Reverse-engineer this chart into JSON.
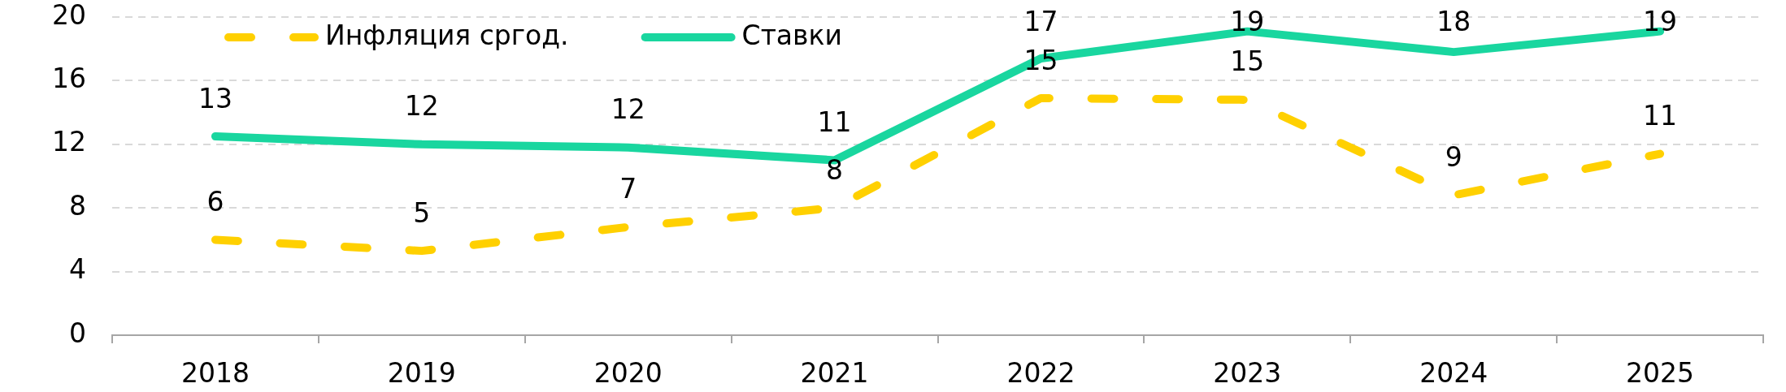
{
  "chart_data": {
    "type": "line",
    "categories": [
      "2018",
      "2019",
      "2020",
      "2021",
      "2022",
      "2023",
      "2024",
      "2025"
    ],
    "series": [
      {
        "name": "Инфляция сргод.",
        "color": "#ffd000",
        "line_style": "dashed",
        "values": [
          6.0,
          5.3,
          6.8,
          8.0,
          14.9,
          14.8,
          8.8,
          11.4
        ],
        "value_labels": [
          "6",
          "5",
          "7",
          "8",
          "15",
          "15",
          "9",
          "11"
        ]
      },
      {
        "name": "Ставки",
        "color": "#19d69f",
        "line_style": "solid",
        "values": [
          12.5,
          12.0,
          11.8,
          11.0,
          17.4,
          19.1,
          17.8,
          19.1
        ],
        "value_labels": [
          "13",
          "12",
          "12",
          "11",
          "17",
          "19",
          "18",
          "19"
        ]
      }
    ],
    "ylim": [
      0,
      20
    ],
    "yticks": [
      0,
      4,
      8,
      12,
      16,
      20
    ],
    "grid": "y",
    "legend": "top left"
  }
}
